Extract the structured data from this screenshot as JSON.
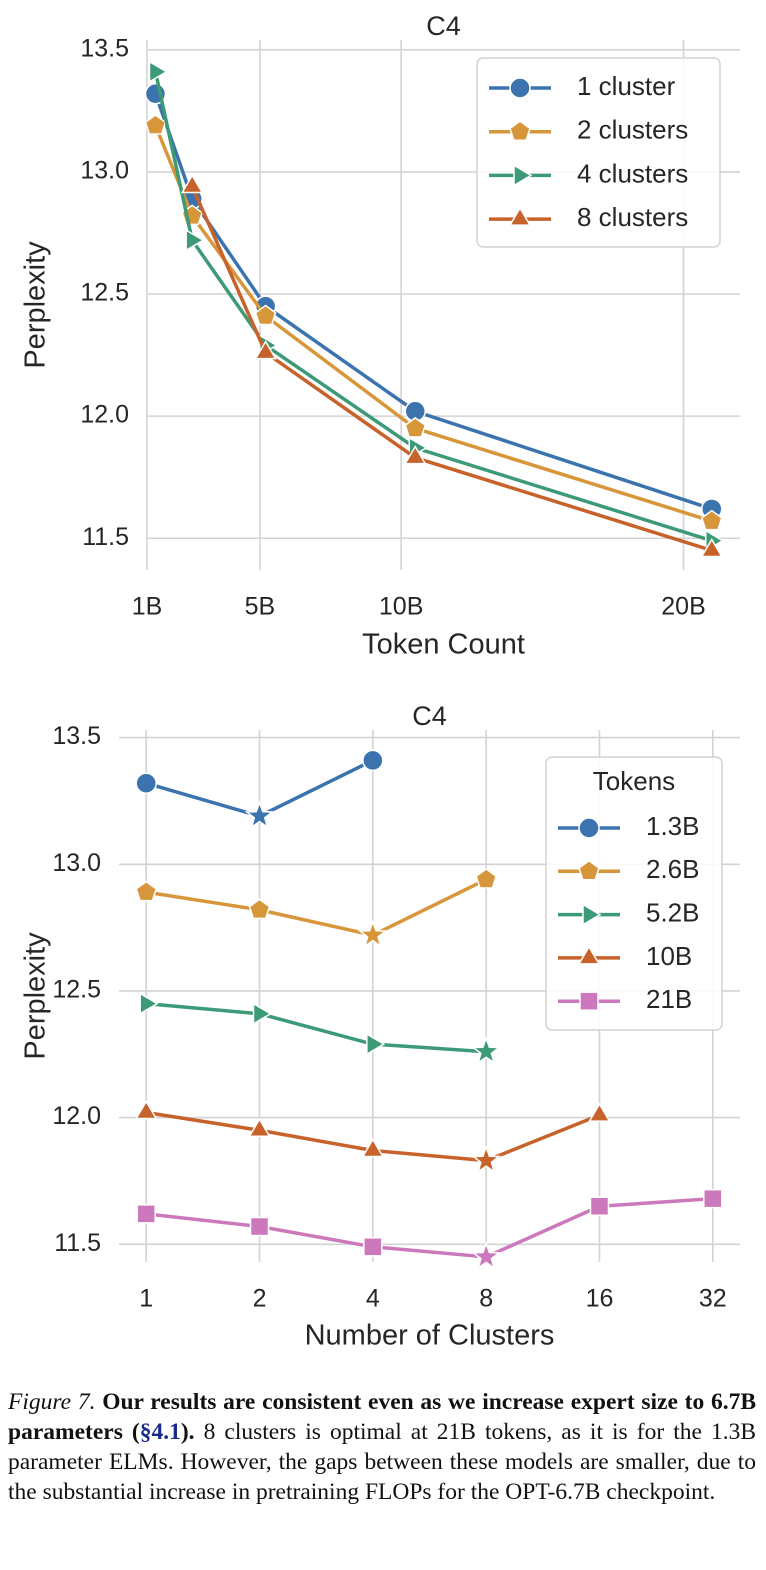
{
  "charts": [
    {
      "type": "line",
      "title": "C4",
      "xlabel": "Token Count",
      "ylabel": "Perplexity",
      "x": [
        1.3,
        2.6,
        5.2,
        10.5,
        21
      ],
      "xlim": [
        1,
        22
      ],
      "xticks": [
        {
          "value": 1,
          "label": "1B"
        },
        {
          "value": 5,
          "label": "5B"
        },
        {
          "value": 10,
          "label": "10B"
        },
        {
          "value": 20,
          "label": "20B"
        }
      ],
      "ylim": [
        11.37,
        13.54
      ],
      "yticks": [
        11.5,
        {
          "value": 12,
          "label": "12.0"
        },
        12.5,
        {
          "value": 13,
          "label": "13.0"
        },
        13.5
      ],
      "grid": true,
      "legend": "upper right",
      "series": [
        {
          "name": "1 cluster",
          "color": "#3b73af",
          "marker": "circle",
          "values": [
            13.32,
            12.89,
            12.45,
            12.02,
            11.62
          ]
        },
        {
          "name": "2 clusters",
          "color": "#d8963a",
          "marker": "pentagon",
          "values": [
            13.19,
            12.82,
            12.41,
            11.95,
            11.57
          ]
        },
        {
          "name": "4 clusters",
          "color": "#3d9a76",
          "marker": "triangle-right",
          "values": [
            13.41,
            12.72,
            12.29,
            11.87,
            11.49
          ]
        },
        {
          "name": "8 clusters",
          "color": "#c8622b",
          "marker": "triangle-up",
          "values": [
            null,
            12.94,
            12.26,
            11.83,
            11.45
          ]
        }
      ]
    },
    {
      "type": "line",
      "title": "C4",
      "xlabel": "Number of Clusters",
      "ylabel": "Perplexity",
      "categories": [
        "1",
        "2",
        "4",
        "8",
        "16",
        "32"
      ],
      "ylim": [
        11.43,
        13.53
      ],
      "yticks": [
        11.5,
        {
          "value": 12,
          "label": "12.0"
        },
        12.5,
        {
          "value": 13,
          "label": "13.0"
        },
        13.5
      ],
      "grid": true,
      "legend": "upper right",
      "legend_title": "Tokens",
      "min_marker": "star",
      "series": [
        {
          "name": "1.3B",
          "color": "#3b73af",
          "marker": "circle",
          "values": [
            13.32,
            13.19,
            13.41,
            null,
            null,
            null
          ]
        },
        {
          "name": "2.6B",
          "color": "#d8963a",
          "marker": "pentagon",
          "values": [
            12.89,
            12.82,
            12.72,
            12.94,
            null,
            null
          ]
        },
        {
          "name": "5.2B",
          "color": "#3d9a76",
          "marker": "triangle-right",
          "values": [
            12.45,
            12.41,
            12.29,
            12.26,
            null,
            null
          ]
        },
        {
          "name": "10B",
          "color": "#c8622b",
          "marker": "triangle-up",
          "values": [
            12.02,
            11.95,
            11.87,
            11.83,
            12.01,
            null
          ]
        },
        {
          "name": "21B",
          "color": "#cc78bc",
          "marker": "square",
          "values": [
            11.62,
            11.57,
            11.49,
            11.45,
            11.65,
            11.68
          ]
        }
      ]
    }
  ],
  "caption": {
    "label": "Figure 7.",
    "bold": "Our results are consistent even as we increase expert size to 6.7B parameters (",
    "link": "§4.1",
    "bold_end": ").",
    "text": "8 clusters is optimal at 21B tokens, as it is for the 1.3B parameter ELMs. However, the gaps between these models are smaller, due to the substantial increase in pretraining FLOPs for the OPT-6.7B checkpoint."
  }
}
